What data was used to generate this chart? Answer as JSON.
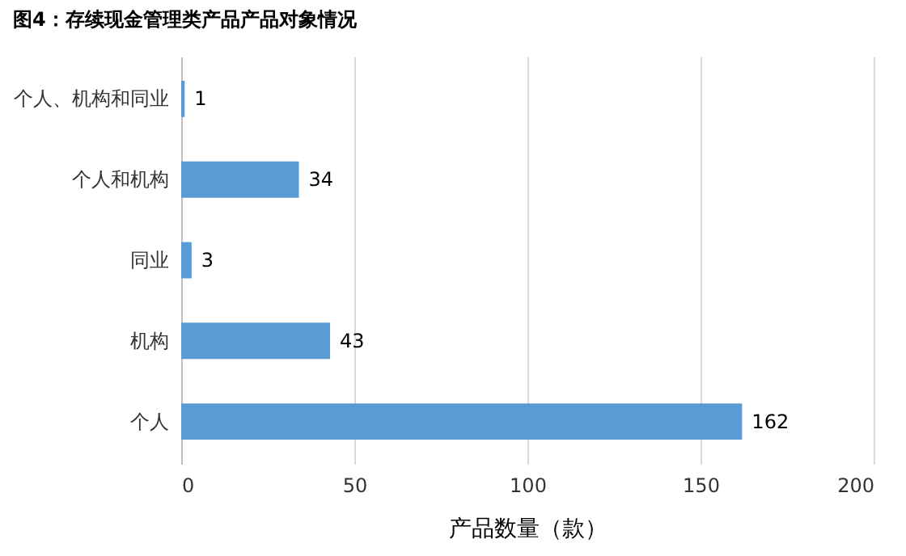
{
  "chart_data": {
    "type": "bar",
    "orientation": "horizontal",
    "title": "图4：存续现金管理类产品产品对象情况",
    "categories": [
      "个人、机构和同业",
      "个人和机构",
      "同业",
      "机构",
      "个人"
    ],
    "values": [
      1,
      34,
      3,
      43,
      162
    ],
    "color": "#5b9bd5",
    "xlabel": "产品数量（款）",
    "xlim": [
      0,
      200
    ],
    "xticks": [
      0,
      50,
      100,
      150,
      200
    ],
    "grid": "x",
    "data_labels": true
  }
}
